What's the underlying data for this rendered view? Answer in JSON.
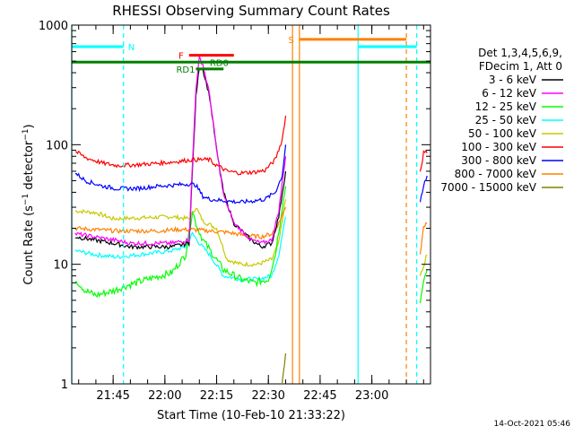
{
  "chart_data": {
    "type": "line",
    "title": "RHESSI Observing Summary Count Rates",
    "xlabel": "Start Time (10-Feb-10 21:33:22)",
    "ylabel": "Count Rate (s⁻¹ detector⁻¹)",
    "ylabel_main": "Count Rate (s",
    "ylabel_sup1": "−1",
    "ylabel_mid": " detector",
    "ylabel_sup2": "−1",
    "ylabel_end": ")",
    "footer": "14-Oct-2021 05:46",
    "y_scale": "log",
    "ylim": [
      1,
      1000
    ],
    "xlim": [
      "21:33",
      "23:17"
    ],
    "x_ticks": [
      "21:45",
      "22:00",
      "22:15",
      "22:30",
      "22:45",
      "23:00"
    ],
    "y_ticks": [
      "1",
      "10",
      "100",
      "1000"
    ],
    "legend_header": [
      "Det 1,3,4,5,6,9,",
      "FDecim 1, Att 0"
    ],
    "legend_placement": "right",
    "series": [
      {
        "name": "3 - 6 keV",
        "color": "#000000",
        "points": [
          [
            "21:34",
            17
          ],
          [
            "21:45",
            15
          ],
          [
            "21:50",
            14
          ],
          [
            "22:02",
            14
          ],
          [
            "22:07",
            15
          ],
          [
            "22:09",
            250
          ],
          [
            "22:10",
            450
          ],
          [
            "22:11",
            430
          ],
          [
            "22:13",
            250
          ],
          [
            "22:15",
            90
          ],
          [
            "22:17",
            40
          ],
          [
            "22:20",
            22
          ],
          [
            "22:25",
            16
          ],
          [
            "22:28",
            14
          ],
          [
            "22:31",
            15
          ],
          [
            "22:33",
            25
          ],
          [
            "22:35",
            60
          ]
        ]
      },
      {
        "name": "6 - 12 keV",
        "color": "#ff00ff",
        "points": [
          [
            "21:34",
            18
          ],
          [
            "21:45",
            16
          ],
          [
            "21:50",
            15
          ],
          [
            "22:02",
            15
          ],
          [
            "22:07",
            16
          ],
          [
            "22:09",
            300
          ],
          [
            "22:10",
            530
          ],
          [
            "22:11",
            470
          ],
          [
            "22:13",
            260
          ],
          [
            "22:15",
            90
          ],
          [
            "22:17",
            38
          ],
          [
            "22:20",
            22
          ],
          [
            "22:25",
            16
          ],
          [
            "22:28",
            15
          ],
          [
            "22:31",
            16
          ],
          [
            "22:33",
            28
          ],
          [
            "22:35",
            80
          ]
        ]
      },
      {
        "name": "12 - 25 keV",
        "color": "#00ff00",
        "points": [
          [
            "21:34",
            7.5
          ],
          [
            "21:37",
            6
          ],
          [
            "21:40",
            5.5
          ],
          [
            "21:45",
            6
          ],
          [
            "21:48",
            6.5
          ],
          [
            "21:55",
            7.5
          ],
          [
            "22:02",
            8.5
          ],
          [
            "22:06",
            12
          ],
          [
            "22:08",
            28
          ],
          [
            "22:09",
            22
          ],
          [
            "22:11",
            16
          ],
          [
            "22:14",
            12
          ],
          [
            "22:17",
            9
          ],
          [
            "22:22",
            7.5
          ],
          [
            "22:26",
            7
          ],
          [
            "22:30",
            7.5
          ],
          [
            "22:32",
            12
          ],
          [
            "22:34",
            30
          ],
          [
            "22:35",
            45
          ]
        ]
      },
      {
        "name": "25 - 50 keV",
        "color": "#00ffff",
        "points": [
          [
            "21:34",
            13
          ],
          [
            "21:40",
            12
          ],
          [
            "21:46",
            11.5
          ],
          [
            "21:52",
            12
          ],
          [
            "22:02",
            13
          ],
          [
            "22:06",
            14
          ],
          [
            "22:08",
            18
          ],
          [
            "22:10",
            15
          ],
          [
            "22:13",
            12
          ],
          [
            "22:17",
            8
          ],
          [
            "22:22",
            7.5
          ],
          [
            "22:27",
            7.5
          ],
          [
            "22:31",
            8
          ],
          [
            "22:33",
            12
          ],
          [
            "22:35",
            25
          ]
        ]
      },
      {
        "name": "50 - 100 keV",
        "color": "#c8c800",
        "points": [
          [
            "21:34",
            28
          ],
          [
            "21:40",
            27
          ],
          [
            "21:45",
            24
          ],
          [
            "22:02",
            25
          ],
          [
            "22:07",
            24
          ],
          [
            "22:09",
            30
          ],
          [
            "22:11",
            23
          ],
          [
            "22:15",
            20
          ],
          [
            "22:18",
            11
          ],
          [
            "22:22",
            10
          ],
          [
            "22:27",
            10
          ],
          [
            "22:31",
            11
          ],
          [
            "22:33",
            15
          ],
          [
            "22:35",
            35
          ]
        ]
      },
      {
        "name": "100 - 300 keV",
        "color": "#ff0000",
        "points": [
          [
            "21:34",
            88
          ],
          [
            "21:37",
            78
          ],
          [
            "21:42",
            70
          ],
          [
            "21:46",
            67
          ],
          [
            "21:52",
            68
          ],
          [
            "21:58",
            70
          ],
          [
            "22:03",
            72
          ],
          [
            "22:08",
            75
          ],
          [
            "22:10",
            75
          ],
          [
            "22:13",
            75
          ],
          [
            "22:14",
            70
          ],
          [
            "22:16",
            65
          ],
          [
            "22:18",
            60
          ],
          [
            "22:22",
            58
          ],
          [
            "22:26",
            59
          ],
          [
            "22:29",
            61
          ],
          [
            "22:32",
            75
          ],
          [
            "22:34",
            110
          ],
          [
            "22:35",
            175
          ]
        ]
      },
      {
        "name": "300 - 800 keV",
        "color": "#0000ff",
        "points": [
          [
            "21:34",
            58
          ],
          [
            "21:37",
            50
          ],
          [
            "21:42",
            45
          ],
          [
            "21:46",
            43
          ],
          [
            "21:52",
            43
          ],
          [
            "21:58",
            45
          ],
          [
            "22:03",
            46
          ],
          [
            "22:07",
            47
          ],
          [
            "22:09",
            46
          ],
          [
            "22:11",
            37
          ],
          [
            "22:13",
            35
          ],
          [
            "22:17",
            34
          ],
          [
            "22:22",
            33
          ],
          [
            "22:26",
            34
          ],
          [
            "22:29",
            35
          ],
          [
            "22:32",
            40
          ],
          [
            "22:34",
            55
          ],
          [
            "22:35",
            100
          ]
        ]
      },
      {
        "name": "800 - 7000 keV",
        "color": "#ff8000",
        "points": [
          [
            "21:34",
            20
          ],
          [
            "21:40",
            19.5
          ],
          [
            "21:46",
            19
          ],
          [
            "21:52",
            19
          ],
          [
            "21:58",
            19
          ],
          [
            "22:03",
            19.5
          ],
          [
            "22:08",
            19.5
          ],
          [
            "22:13",
            19
          ],
          [
            "22:18",
            18.5
          ],
          [
            "22:23",
            17.5
          ],
          [
            "22:28",
            17
          ],
          [
            "22:31",
            18
          ],
          [
            "22:33",
            22
          ],
          [
            "22:35",
            30
          ]
        ]
      },
      {
        "name": "7000 - 15000 keV",
        "color": "#808000",
        "points": [
          [
            "22:34",
            1.0
          ],
          [
            "22:35",
            1.8
          ]
        ]
      }
    ],
    "tail_segments": [
      {
        "color": "#ff0000",
        "points": [
          [
            "23:14",
            60
          ],
          [
            "23:15",
            85
          ],
          [
            "23:16",
            85
          ]
        ]
      },
      {
        "color": "#0000ff",
        "points": [
          [
            "23:14",
            35
          ],
          [
            "23:15",
            45
          ],
          [
            "23:16",
            55
          ]
        ]
      },
      {
        "color": "#ff8000",
        "points": [
          [
            "23:14",
            12
          ],
          [
            "23:15",
            20
          ],
          [
            "23:16",
            22
          ]
        ]
      },
      {
        "color": "#c8c800",
        "points": [
          [
            "23:14",
            8
          ],
          [
            "23:15",
            10
          ],
          [
            "23:16",
            12
          ]
        ]
      },
      {
        "color": "#00ff00",
        "points": [
          [
            "23:14",
            5
          ],
          [
            "23:15",
            7
          ],
          [
            "23:16",
            9
          ]
        ]
      }
    ],
    "flags": [
      {
        "label": "N",
        "color": "#00ffff",
        "level": 660,
        "segments": [
          [
            "21:33",
            "21:48"
          ],
          [
            "22:56",
            "23:13"
          ]
        ]
      },
      {
        "label": "S",
        "color": "#ff8000",
        "level": 760,
        "segments": [
          [
            "22:39",
            "23:10"
          ]
        ]
      },
      {
        "label": "F",
        "color": "#ff0000",
        "level": 560,
        "segments": [
          [
            "22:07",
            "22:20"
          ]
        ]
      },
      {
        "label": "RD0",
        "color": "#008000",
        "level": 490,
        "segments": [
          [
            "21:33",
            "23:17"
          ]
        ]
      },
      {
        "label": "RD1",
        "color": "#008000",
        "level": 430,
        "segments": [
          [
            "22:09",
            "22:17"
          ]
        ]
      }
    ],
    "vertical_markers": [
      {
        "color": "#00ffff",
        "style": "solid",
        "time": "21:33"
      },
      {
        "color": "#00ffff",
        "style": "dashed",
        "time": "21:48"
      },
      {
        "color": "#00ffff",
        "style": "solid",
        "time": "22:56"
      },
      {
        "color": "#00ffff",
        "style": "dashed",
        "time": "23:13"
      },
      {
        "color": "#ff8000",
        "style": "solid",
        "time": "22:37"
      },
      {
        "color": "#ff8000",
        "style": "solid",
        "time": "22:39"
      },
      {
        "color": "#ff8000",
        "style": "dashed",
        "time": "23:10"
      }
    ]
  }
}
